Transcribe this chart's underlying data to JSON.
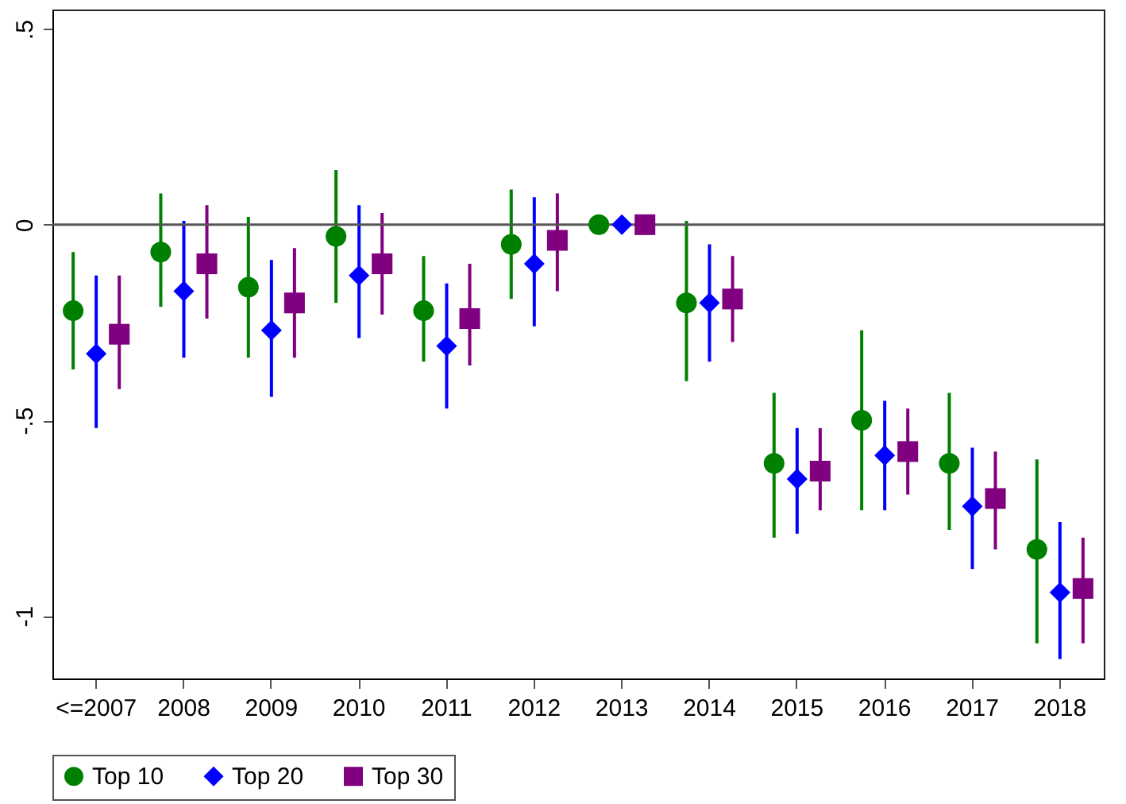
{
  "chart_data": {
    "type": "scatter",
    "categories": [
      "<=2007",
      "2008",
      "2009",
      "2010",
      "2011",
      "2012",
      "2013",
      "2014",
      "2015",
      "2016",
      "2017",
      "2018"
    ],
    "series": [
      {
        "name": "Top 10",
        "color": "#008000",
        "marker": "circle",
        "values": [
          -0.22,
          -0.07,
          -0.16,
          -0.03,
          -0.22,
          -0.05,
          0,
          -0.2,
          -0.61,
          -0.5,
          -0.61,
          -0.83
        ],
        "errors": [
          [
            -0.37,
            -0.07
          ],
          [
            -0.21,
            0.08
          ],
          [
            -0.34,
            0.02
          ],
          [
            -0.2,
            0.14
          ],
          [
            -0.35,
            -0.08
          ],
          [
            -0.19,
            0.09
          ],
          null,
          [
            -0.4,
            0.01
          ],
          [
            -0.8,
            -0.43
          ],
          [
            -0.73,
            -0.27
          ],
          [
            -0.78,
            -0.43
          ],
          [
            -1.07,
            -0.6
          ]
        ]
      },
      {
        "name": "Top 20",
        "color": "#0000ff",
        "marker": "diamond",
        "values": [
          -0.33,
          -0.17,
          -0.27,
          -0.13,
          -0.31,
          -0.1,
          0,
          -0.2,
          -0.65,
          -0.59,
          -0.72,
          -0.94
        ],
        "errors": [
          [
            -0.52,
            -0.13
          ],
          [
            -0.34,
            0.01
          ],
          [
            -0.44,
            -0.09
          ],
          [
            -0.29,
            0.05
          ],
          [
            -0.47,
            -0.15
          ],
          [
            -0.26,
            0.07
          ],
          null,
          [
            -0.35,
            -0.05
          ],
          [
            -0.79,
            -0.52
          ],
          [
            -0.73,
            -0.45
          ],
          [
            -0.88,
            -0.57
          ],
          [
            -1.11,
            -0.76
          ]
        ]
      },
      {
        "name": "Top 30",
        "color": "#800080",
        "marker": "square",
        "values": [
          -0.28,
          -0.1,
          -0.2,
          -0.1,
          -0.24,
          -0.04,
          0,
          -0.19,
          -0.63,
          -0.58,
          -0.7,
          -0.93
        ],
        "errors": [
          [
            -0.42,
            -0.13
          ],
          [
            -0.24,
            0.05
          ],
          [
            -0.34,
            -0.06
          ],
          [
            -0.23,
            0.03
          ],
          [
            -0.36,
            -0.1
          ],
          [
            -0.17,
            0.08
          ],
          null,
          [
            -0.3,
            -0.08
          ],
          [
            -0.73,
            -0.52
          ],
          [
            -0.69,
            -0.47
          ],
          [
            -0.83,
            -0.58
          ],
          [
            -1.07,
            -0.8
          ]
        ]
      }
    ],
    "ylim": [
      -1.16,
      0.55
    ],
    "yticks": [
      {
        "value": -1,
        "label": "-1"
      },
      {
        "value": -0.5,
        "label": "-.5"
      },
      0,
      {
        "value": 0.5,
        "label": ".5"
      }
    ],
    "ref_lines": [
      {
        "axis": "y",
        "value": 0,
        "color": "#555555"
      }
    ],
    "legend": "bottom",
    "grid": false
  }
}
